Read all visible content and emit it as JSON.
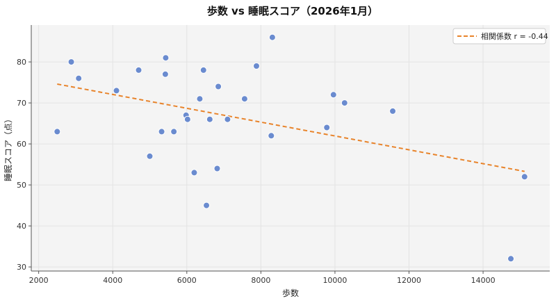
{
  "chart_data": {
    "type": "scatter",
    "title": "歩数 vs 睡眠スコア（2026年1月）",
    "xlabel": "歩数",
    "ylabel": "睡眠スコア（点）",
    "xlim": [
      1800,
      15800
    ],
    "ylim": [
      29,
      89
    ],
    "xticks": [
      2000,
      4000,
      6000,
      8000,
      10000,
      12000,
      14000
    ],
    "yticks": [
      30,
      40,
      50,
      60,
      70,
      80
    ],
    "grid": true,
    "legend_position": "top-right",
    "colors": {
      "points": "#6a8bcf",
      "trend": "#e8832a",
      "plot_background": "#f4f4f4",
      "grid": "#e3e3e3"
    },
    "points": [
      {
        "x": 2500,
        "y": 63
      },
      {
        "x": 2880,
        "y": 80
      },
      {
        "x": 3080,
        "y": 76
      },
      {
        "x": 4100,
        "y": 73
      },
      {
        "x": 4700,
        "y": 78
      },
      {
        "x": 5000,
        "y": 57
      },
      {
        "x": 5320,
        "y": 63
      },
      {
        "x": 5420,
        "y": 77
      },
      {
        "x": 5430,
        "y": 81
      },
      {
        "x": 5650,
        "y": 63
      },
      {
        "x": 5980,
        "y": 67
      },
      {
        "x": 6020,
        "y": 66
      },
      {
        "x": 6200,
        "y": 53
      },
      {
        "x": 6350,
        "y": 71
      },
      {
        "x": 6450,
        "y": 78
      },
      {
        "x": 6530,
        "y": 45
      },
      {
        "x": 6620,
        "y": 66
      },
      {
        "x": 6820,
        "y": 54
      },
      {
        "x": 6850,
        "y": 74
      },
      {
        "x": 7100,
        "y": 66
      },
      {
        "x": 7560,
        "y": 71
      },
      {
        "x": 7880,
        "y": 79
      },
      {
        "x": 8280,
        "y": 62
      },
      {
        "x": 8310,
        "y": 86
      },
      {
        "x": 9780,
        "y": 64
      },
      {
        "x": 9960,
        "y": 72
      },
      {
        "x": 10260,
        "y": 70
      },
      {
        "x": 11560,
        "y": 68
      },
      {
        "x": 14750,
        "y": 32
      },
      {
        "x": 15120,
        "y": 52
      }
    ],
    "trend_line": {
      "label": "相関係数 r = -0.44",
      "x": [
        2500,
        15120
      ],
      "y": [
        74.6,
        53.3
      ]
    }
  }
}
